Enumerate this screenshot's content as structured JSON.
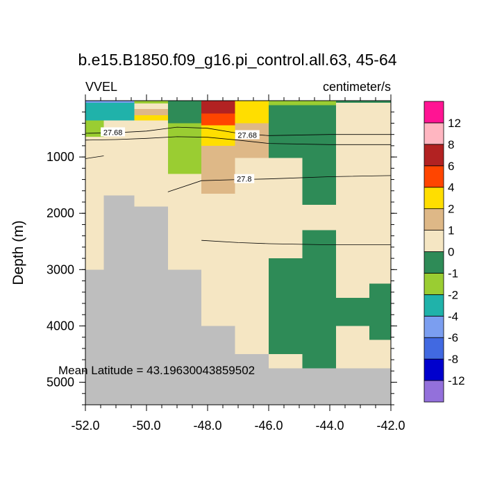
{
  "title": "b.e15.B1850.f09_g16.pi_control.all.63, 45-64",
  "left_label": "VVEL",
  "right_label": "centimeter/s",
  "annotation": "Mean Latitude = 43.19630043859502",
  "chart_data": {
    "type": "heatmap",
    "ylabel": "Depth (m)",
    "xlim": [
      -52.0,
      -42.0
    ],
    "ylim": [
      5400,
      0
    ],
    "y_reversed": true,
    "xticks": [
      -52,
      -50,
      -48,
      -46,
      -44,
      -42
    ],
    "xtick_labels": [
      "-52.0",
      "-50.0",
      "-48.0",
      "-46.0",
      "-44.0",
      "-42.0"
    ],
    "yticks": [
      1000,
      2000,
      3000,
      4000,
      5000
    ],
    "ytick_labels": [
      "1000",
      "2000",
      "3000",
      "4000",
      "5000"
    ],
    "land_color": "#bebebe",
    "colorbar": {
      "colors": [
        "#9370db",
        "#0000cd",
        "#4169e1",
        "#7b9ef0",
        "#20b2aa",
        "#9acd32",
        "#2e8b57",
        "#f5e6c3",
        "#deb887",
        "#ffde00",
        "#ff4500",
        "#b22222",
        "#ffb6c1",
        "#ff1493"
      ],
      "labels": [
        "-12",
        "-8",
        "-6",
        "-4",
        "-2",
        "-1",
        "0",
        "1",
        "2",
        "4",
        "6",
        "8",
        "12"
      ]
    },
    "cells": [
      {
        "x0": -52.0,
        "x1": -50.4,
        "y0": 0,
        "y1": 40,
        "c": "#7b9ef0"
      },
      {
        "x0": -52.0,
        "x1": -50.4,
        "y0": 40,
        "y1": 350,
        "c": "#20b2aa"
      },
      {
        "x0": -52.0,
        "x1": -51.4,
        "y0": 350,
        "y1": 640,
        "c": "#9acd32"
      },
      {
        "x0": -50.4,
        "x1": -49.3,
        "y0": 0,
        "y1": 50,
        "c": "#9acd32"
      },
      {
        "x0": -50.4,
        "x1": -49.3,
        "y0": 150,
        "y1": 260,
        "c": "#deb887"
      },
      {
        "x0": -50.4,
        "x1": -49.3,
        "y0": 260,
        "y1": 350,
        "c": "#ffde00"
      },
      {
        "x0": -49.3,
        "x1": -48.2,
        "y0": 0,
        "y1": 400,
        "c": "#2e8b57"
      },
      {
        "x0": -49.3,
        "x1": -48.2,
        "y0": 400,
        "y1": 1300,
        "c": "#9acd32"
      },
      {
        "x0": -48.2,
        "x1": -47.1,
        "y0": 0,
        "y1": 230,
        "c": "#b22222"
      },
      {
        "x0": -48.2,
        "x1": -47.1,
        "y0": 230,
        "y1": 440,
        "c": "#ff4500"
      },
      {
        "x0": -48.2,
        "x1": -47.1,
        "y0": 440,
        "y1": 800,
        "c": "#ffde00"
      },
      {
        "x0": -48.2,
        "x1": -47.1,
        "y0": 800,
        "y1": 1650,
        "c": "#deb887"
      },
      {
        "x0": -47.1,
        "x1": -46.0,
        "y0": 0,
        "y1": 400,
        "c": "#ffde00"
      },
      {
        "x0": -47.1,
        "x1": -46.0,
        "y0": 400,
        "y1": 1020,
        "c": "#deb887"
      },
      {
        "x0": -46.0,
        "x1": -43.8,
        "y0": 0,
        "y1": 80,
        "c": "#9acd32"
      },
      {
        "x0": -46.0,
        "x1": -43.8,
        "y0": 80,
        "y1": 1020,
        "c": "#2e8b57"
      },
      {
        "x0": -44.9,
        "x1": -43.8,
        "y0": 1020,
        "y1": 1850,
        "c": "#2e8b57"
      },
      {
        "x0": -43.8,
        "x1": -42.0,
        "y0": 0,
        "y1": 40,
        "c": "#2e8b57"
      },
      {
        "x0": -46.0,
        "x1": -44.9,
        "y0": 2800,
        "y1": 4500,
        "c": "#2e8b57"
      },
      {
        "x0": -44.9,
        "x1": -43.8,
        "y0": 2300,
        "y1": 4750,
        "c": "#2e8b57"
      },
      {
        "x0": -43.8,
        "x1": -42.7,
        "y0": 3500,
        "y1": 4000,
        "c": "#2e8b57"
      },
      {
        "x0": -42.7,
        "x1": -42.0,
        "y0": 3250,
        "y1": 4250,
        "c": "#2e8b57"
      }
    ],
    "land": [
      {
        "x0": -52.0,
        "x1": -51.4,
        "y0": 3000,
        "y1": 5400
      },
      {
        "x0": -51.4,
        "x1": -50.4,
        "y0": 1680,
        "y1": 5400
      },
      {
        "x0": -50.4,
        "x1": -49.3,
        "y0": 1880,
        "y1": 5400
      },
      {
        "x0": -49.3,
        "x1": -48.2,
        "y0": 3000,
        "y1": 5400
      },
      {
        "x0": -48.2,
        "x1": -47.1,
        "y0": 4000,
        "y1": 5400
      },
      {
        "x0": -47.1,
        "x1": -46.0,
        "y0": 4500,
        "y1": 5400
      },
      {
        "x0": -46.0,
        "x1": -42.0,
        "y0": 4750,
        "y1": 5400
      }
    ],
    "contours": [
      {
        "points": [
          [
            -52.0,
            580
          ],
          [
            -51.0,
            570
          ],
          [
            -50.0,
            540
          ],
          [
            -49.0,
            470
          ],
          [
            -48.0,
            490
          ],
          [
            -47.0,
            580
          ],
          [
            -46.0,
            620
          ],
          [
            -44.0,
            600
          ],
          [
            -42.0,
            600
          ]
        ]
      },
      {
        "points": [
          [
            -52.0,
            700
          ],
          [
            -51.0,
            690
          ],
          [
            -50.0,
            670
          ],
          [
            -49.0,
            640
          ],
          [
            -48.0,
            650
          ],
          [
            -47.0,
            700
          ],
          [
            -46.0,
            760
          ],
          [
            -44.0,
            780
          ],
          [
            -42.0,
            780
          ]
        ]
      },
      {
        "points": [
          [
            -52.0,
            1030
          ],
          [
            -51.4,
            980
          ]
        ]
      },
      {
        "points": [
          [
            -49.3,
            1620
          ],
          [
            -48.2,
            1420
          ],
          [
            -47.0,
            1400
          ],
          [
            -46.0,
            1390
          ],
          [
            -44.0,
            1350
          ],
          [
            -42.0,
            1330
          ]
        ]
      },
      {
        "points": [
          [
            -48.2,
            2480
          ],
          [
            -47.0,
            2520
          ],
          [
            -46.0,
            2540
          ],
          [
            -44.0,
            2560
          ],
          [
            -42.0,
            2560
          ]
        ]
      }
    ],
    "contour_labels": [
      {
        "text": "27.68",
        "x": -51.1,
        "y": 560
      },
      {
        "text": "27.68",
        "x": -46.7,
        "y": 610
      },
      {
        "text": "27.8",
        "x": -46.8,
        "y": 1390
      }
    ]
  }
}
